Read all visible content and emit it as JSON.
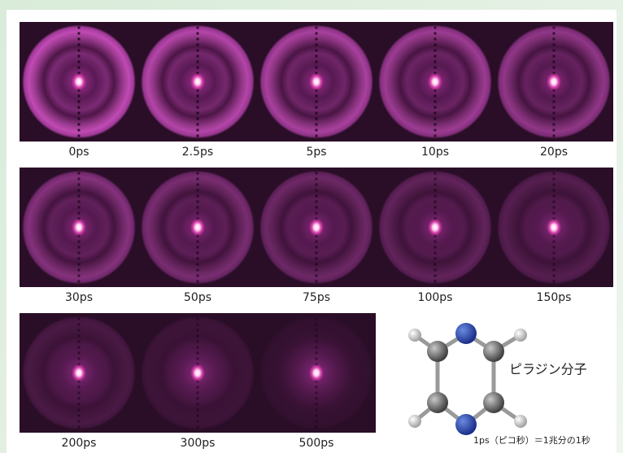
{
  "rows": [
    {
      "labels": [
        "0ps",
        "2.5ps",
        "5ps",
        "10ps",
        "20ps"
      ]
    },
    {
      "labels": [
        "30ps",
        "50ps",
        "75ps",
        "100ps",
        "150ps"
      ]
    },
    {
      "labels": [
        "200ps",
        "300ps",
        "500ps"
      ]
    }
  ],
  "molecule_label": "ピラジン分子",
  "footnote": "1ps（ピコ秒）＝1兆分の1秒"
}
